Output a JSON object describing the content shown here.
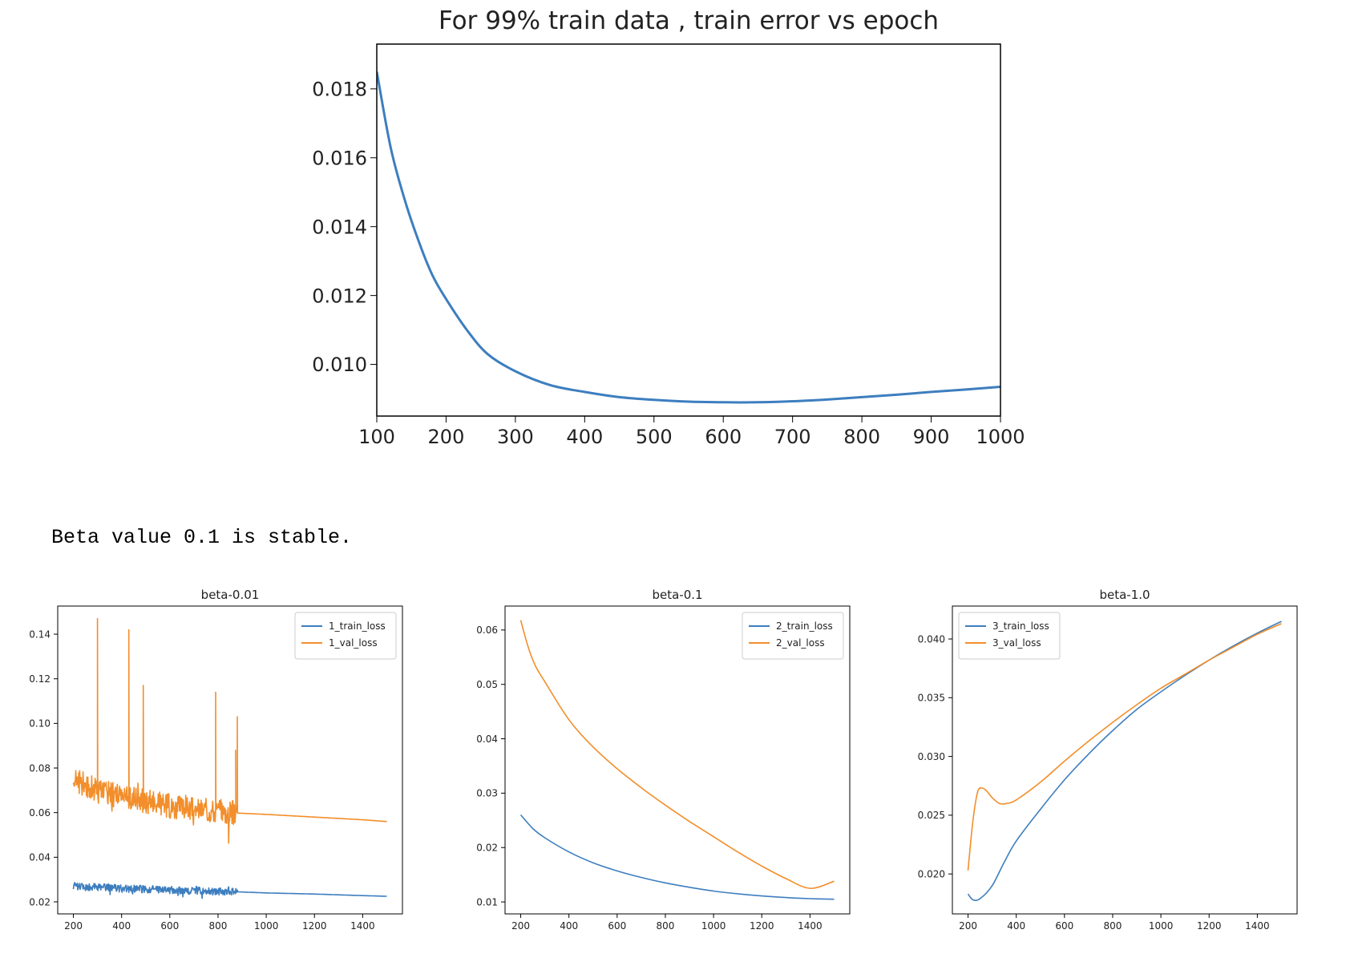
{
  "caption": "Beta value 0.1 is stable.",
  "colors": {
    "train": "#3d7ebf",
    "val": "#f28e2b",
    "axis": "#000000"
  },
  "chart_data": [
    {
      "id": "main",
      "type": "line",
      "title": "For 99% train data , train error vs epoch",
      "xlabel": "",
      "ylabel": "",
      "xlim": [
        100,
        1000
      ],
      "ylim": [
        0.0085,
        0.0193
      ],
      "xticks": [
        100,
        200,
        300,
        400,
        500,
        600,
        700,
        800,
        900,
        1000
      ],
      "yticks": [
        0.01,
        0.012,
        0.014,
        0.016,
        0.018
      ],
      "ytick_labels": [
        "0.010",
        "0.012",
        "0.014",
        "0.016",
        "0.018"
      ],
      "grid": false,
      "series": [
        {
          "color": "#3d7ebf",
          "x": [
            100,
            120,
            140,
            160,
            180,
            200,
            230,
            260,
            300,
            350,
            400,
            450,
            500,
            550,
            600,
            650,
            700,
            750,
            800,
            850,
            900,
            950,
            1000
          ],
          "y": [
            0.0185,
            0.0163,
            0.0148,
            0.0136,
            0.0126,
            0.0119,
            0.011,
            0.0103,
            0.0098,
            0.0094,
            0.0092,
            0.00905,
            0.00897,
            0.00892,
            0.0089,
            0.0089,
            0.00893,
            0.00898,
            0.00905,
            0.00912,
            0.0092,
            0.00927,
            0.00935
          ]
        }
      ]
    },
    {
      "id": "beta-001",
      "type": "line",
      "title": "beta-0.01",
      "xlabel": "",
      "ylabel": "",
      "xlim": [
        135,
        1565
      ],
      "ylim": [
        0.0146,
        0.1526
      ],
      "xticks": [
        200,
        400,
        600,
        800,
        1000,
        1200,
        1400
      ],
      "yticks": [
        0.02,
        0.04,
        0.06,
        0.08,
        0.1,
        0.12,
        0.14
      ],
      "ytick_labels": [
        "0.02",
        "0.04",
        "0.06",
        "0.08",
        "0.10",
        "0.12",
        "0.14"
      ],
      "legend": "top-right",
      "grid": false,
      "series": [
        {
          "name": "1_train_loss",
          "color": "#3d7ebf",
          "noise": 0.0017,
          "noise_until": 880,
          "x": [
            200,
            300,
            400,
            500,
            600,
            700,
            800,
            880,
            1000,
            1200,
            1400,
            1500
          ],
          "y": [
            0.027,
            0.0265,
            0.026,
            0.0257,
            0.0253,
            0.025,
            0.0247,
            0.0245,
            0.024,
            0.0235,
            0.0228,
            0.0225
          ]
        },
        {
          "name": "1_val_loss",
          "color": "#f28e2b",
          "noise": 0.0055,
          "noise_until": 880,
          "spikes": [
            [
              300,
              0.147
            ],
            [
              430,
              0.142
            ],
            [
              490,
              0.117
            ],
            [
              790,
              0.114
            ],
            [
              880,
              0.103
            ],
            [
              873,
              0.088
            ]
          ],
          "x": [
            200,
            300,
            400,
            500,
            600,
            700,
            800,
            880,
            1000,
            1200,
            1400,
            1500
          ],
          "y": [
            0.075,
            0.07,
            0.067,
            0.065,
            0.063,
            0.062,
            0.061,
            0.0598,
            0.0592,
            0.058,
            0.0568,
            0.056
          ]
        }
      ]
    },
    {
      "id": "beta-01",
      "type": "line",
      "title": "beta-0.1",
      "xlabel": "",
      "ylabel": "",
      "xlim": [
        135,
        1565
      ],
      "ylim": [
        0.0078,
        0.0644
      ],
      "xticks": [
        200,
        400,
        600,
        800,
        1000,
        1200,
        1400
      ],
      "yticks": [
        0.01,
        0.02,
        0.03,
        0.04,
        0.05,
        0.06
      ],
      "ytick_labels": [
        "0.01",
        "0.02",
        "0.03",
        "0.04",
        "0.05",
        "0.06"
      ],
      "legend": "top-right",
      "grid": false,
      "series": [
        {
          "name": "2_train_loss",
          "color": "#3d7ebf",
          "x": [
            200,
            250,
            300,
            400,
            500,
            600,
            700,
            800,
            900,
            1000,
            1100,
            1200,
            1300,
            1400,
            1500
          ],
          "y": [
            0.026,
            0.0235,
            0.0218,
            0.0192,
            0.0172,
            0.0157,
            0.0145,
            0.0135,
            0.0127,
            0.012,
            0.0115,
            0.0111,
            0.0108,
            0.0106,
            0.0105
          ]
        },
        {
          "name": "2_val_loss",
          "color": "#f28e2b",
          "x": [
            200,
            230,
            260,
            300,
            400,
            500,
            600,
            700,
            800,
            900,
            1000,
            1100,
            1200,
            1300,
            1400,
            1500
          ],
          "y": [
            0.0618,
            0.057,
            0.0535,
            0.0505,
            0.0435,
            0.0385,
            0.0345,
            0.031,
            0.0278,
            0.0248,
            0.022,
            0.0192,
            0.0166,
            0.0143,
            0.0125,
            0.0138
          ]
        }
      ]
    },
    {
      "id": "beta-10",
      "type": "line",
      "title": "beta-1.0",
      "xlabel": "",
      "ylabel": "",
      "xlim": [
        135,
        1565
      ],
      "ylim": [
        0.0166,
        0.0428
      ],
      "xticks": [
        200,
        400,
        600,
        800,
        1000,
        1200,
        1400
      ],
      "yticks": [
        0.02,
        0.025,
        0.03,
        0.035,
        0.04
      ],
      "ytick_labels": [
        "0.020",
        "0.025",
        "0.030",
        "0.035",
        "0.040"
      ],
      "legend": "top-left",
      "grid": false,
      "series": [
        {
          "name": "3_train_loss",
          "color": "#3d7ebf",
          "x": [
            200,
            220,
            250,
            300,
            350,
            400,
            500,
            600,
            700,
            800,
            900,
            1000,
            1100,
            1200,
            1300,
            1400,
            1500
          ],
          "y": [
            0.0183,
            0.0178,
            0.0179,
            0.019,
            0.021,
            0.0228,
            0.0255,
            0.028,
            0.0302,
            0.0322,
            0.034,
            0.0355,
            0.0369,
            0.0382,
            0.0394,
            0.0405,
            0.0415
          ]
        },
        {
          "name": "3_val_loss",
          "color": "#f28e2b",
          "x": [
            200,
            220,
            240,
            260,
            280,
            300,
            330,
            360,
            400,
            500,
            600,
            700,
            800,
            900,
            1000,
            1100,
            1200,
            1300,
            1400,
            1500
          ],
          "y": [
            0.0203,
            0.0245,
            0.027,
            0.0273,
            0.027,
            0.0265,
            0.026,
            0.026,
            0.0263,
            0.0278,
            0.0296,
            0.0313,
            0.0329,
            0.0344,
            0.0358,
            0.037,
            0.0382,
            0.0393,
            0.0404,
            0.0413
          ]
        }
      ]
    }
  ]
}
